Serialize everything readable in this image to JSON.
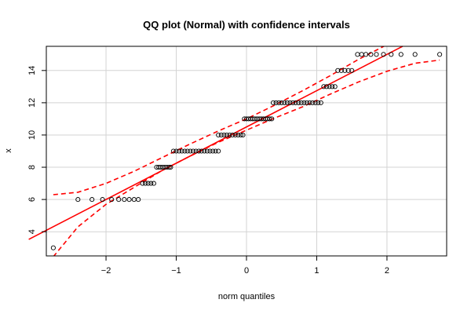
{
  "chart_data": {
    "type": "scatter",
    "title": "QQ plot (Normal) with confidence intervals",
    "xlabel": "norm quantiles",
    "ylabel": "x",
    "xlim": [
      -2.85,
      2.85
    ],
    "ylim": [
      2.5,
      15.5
    ],
    "x_ticks": [
      -2,
      -1,
      0,
      1,
      2
    ],
    "x_tick_labels": [
      "−2",
      "−1",
      "0",
      "1",
      "2"
    ],
    "y_ticks": [
      4,
      6,
      8,
      10,
      12,
      14
    ],
    "y_tick_labels": [
      "4",
      "6",
      "8",
      "10",
      "12",
      "14"
    ],
    "grid": true,
    "reference_line": {
      "intercept": 10.5,
      "slope": 2.25,
      "color": "#ff0000"
    },
    "confidence_bands": {
      "color": "#ff0000",
      "x": [
        -2.75,
        -2.4,
        -2.0,
        -1.6,
        -1.2,
        -0.8,
        -0.4,
        0.0,
        0.4,
        0.8,
        1.2,
        1.6,
        2.0,
        2.4,
        2.75
      ],
      "upper": [
        6.3,
        6.45,
        7.0,
        7.75,
        8.6,
        9.45,
        10.25,
        11.0,
        11.85,
        12.75,
        13.7,
        14.7,
        15.6,
        16.3,
        16.7
      ],
      "lower": [
        2.45,
        4.3,
        5.7,
        6.75,
        7.8,
        8.7,
        9.55,
        10.3,
        11.05,
        11.75,
        12.55,
        13.3,
        13.95,
        14.45,
        14.65
      ]
    },
    "points": [
      {
        "y": 3,
        "x": [
          -2.75
        ]
      },
      {
        "y": 6,
        "x": [
          -2.4,
          -2.2,
          -2.05,
          -1.92,
          -1.82,
          -1.74,
          -1.67,
          -1.6,
          -1.54
        ]
      },
      {
        "y": 7,
        "x": [
          -1.48,
          -1.44,
          -1.4,
          -1.36,
          -1.32
        ]
      },
      {
        "y": 8,
        "x": [
          -1.28,
          -1.25,
          -1.22,
          -1.19,
          -1.16,
          -1.13,
          -1.1,
          -1.08
        ]
      },
      {
        "y": 9,
        "x": [
          -1.04,
          -1.0,
          -0.96,
          -0.92,
          -0.88,
          -0.84,
          -0.8,
          -0.76,
          -0.72,
          -0.68,
          -0.64,
          -0.6,
          -0.56,
          -0.52,
          -0.48,
          -0.44,
          -0.4
        ]
      },
      {
        "y": 10,
        "x": [
          -0.4,
          -0.36,
          -0.32,
          -0.28,
          -0.24,
          -0.2,
          -0.16,
          -0.12,
          -0.08,
          -0.05
        ]
      },
      {
        "y": 11,
        "x": [
          -0.03,
          0.0,
          0.03,
          0.06,
          0.09,
          0.12,
          0.15,
          0.18,
          0.21,
          0.24,
          0.27,
          0.3,
          0.33,
          0.36
        ]
      },
      {
        "y": 12,
        "x": [
          0.38,
          0.42,
          0.46,
          0.5,
          0.54,
          0.58,
          0.62,
          0.66,
          0.7,
          0.74,
          0.78,
          0.82,
          0.86,
          0.9,
          0.94,
          0.98,
          1.02,
          1.06
        ]
      },
      {
        "y": 13,
        "x": [
          1.1,
          1.14,
          1.18,
          1.22,
          1.26
        ]
      },
      {
        "y": 14,
        "x": [
          1.3,
          1.35,
          1.4,
          1.45,
          1.5
        ]
      },
      {
        "y": 15,
        "x": [
          1.58,
          1.64,
          1.7,
          1.77,
          1.85,
          1.95,
          2.06,
          2.2,
          2.4,
          2.75
        ]
      }
    ]
  }
}
